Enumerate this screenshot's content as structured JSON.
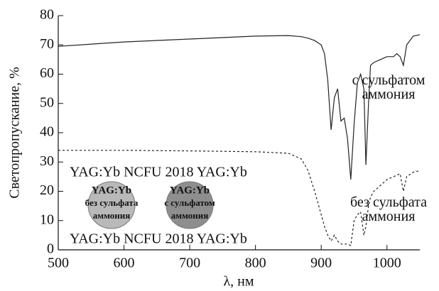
{
  "chart_data": {
    "type": "line",
    "x_label": "λ, нм",
    "y_label": "Светопропускание, %",
    "xlim": [
      500,
      1050
    ],
    "xticks": [
      500,
      600,
      700,
      800,
      900,
      1000
    ],
    "ylim": [
      0,
      80
    ],
    "yticks": [
      0,
      10,
      20,
      30,
      40,
      50,
      60,
      70,
      80
    ],
    "x": [
      500,
      600,
      700,
      800,
      850,
      870,
      880,
      890,
      900,
      905,
      910,
      915,
      920,
      925,
      930,
      935,
      940,
      945,
      950,
      955,
      960,
      965,
      968,
      972,
      975,
      980,
      990,
      1000,
      1010,
      1015,
      1020,
      1025,
      1030,
      1040,
      1050
    ],
    "series": [
      {
        "name": "с сульфатом аммония",
        "color": "#222222",
        "dashed": false,
        "values": [
          69.5,
          71,
          72,
          73,
          73.2,
          72.8,
          72.3,
          71.5,
          70,
          67,
          58,
          41,
          52,
          55,
          44,
          45,
          38,
          24,
          43,
          57,
          60,
          55,
          29,
          50,
          63,
          64,
          65,
          66,
          66,
          67,
          66,
          63,
          70,
          73,
          73.5
        ]
      },
      {
        "name": "без сульфата аммония",
        "color": "#222222",
        "dashed": true,
        "values": [
          34,
          34,
          33.8,
          33.5,
          33,
          31,
          27,
          20,
          12,
          8,
          5,
          3,
          5,
          3,
          2,
          2,
          2,
          1.5,
          10,
          12,
          13,
          5,
          8,
          15,
          18,
          20,
          22,
          24,
          25,
          25.5,
          26,
          20,
          25,
          26.5,
          27
        ]
      }
    ],
    "inset": {
      "top_caption": "YAG:Yb NCFU 2018 YAG:Yb",
      "bottom_caption": "YAG:Yb NCFU 2018 YAG:Yb",
      "samples": [
        {
          "lines": [
            "YAG:Yb",
            "без сульфата",
            "аммония"
          ]
        },
        {
          "lines": [
            "YAG:Yb",
            "с сульфатом",
            "аммония"
          ]
        }
      ]
    }
  }
}
